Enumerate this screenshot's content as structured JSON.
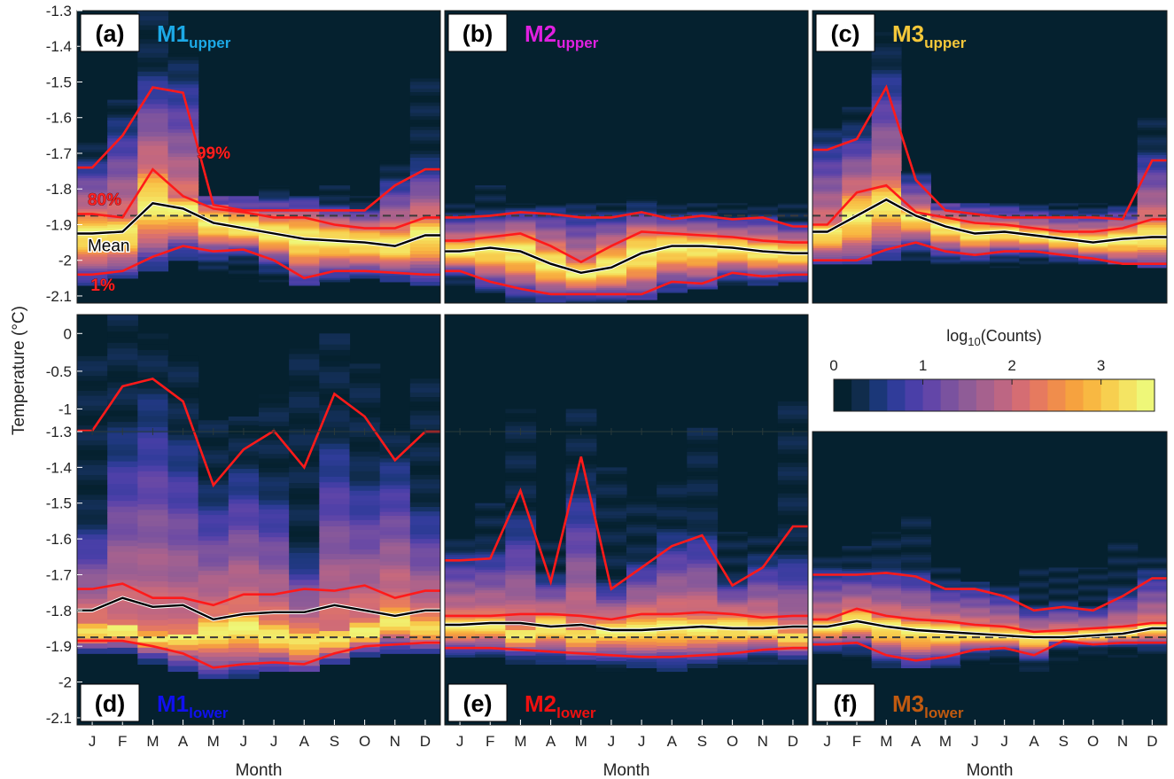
{
  "figure": {
    "ylabel": "Temperature (°C)",
    "xlabel": "Month",
    "months": [
      "J",
      "F",
      "M",
      "A",
      "M",
      "J",
      "J",
      "A",
      "S",
      "O",
      "N",
      "D"
    ],
    "reference_line_style": "dashed"
  },
  "colorbar": {
    "label_main": "log",
    "label_sub": "10",
    "label_tail": "(Counts)",
    "ticks": [
      0,
      1,
      2,
      3
    ],
    "range": [
      0,
      3.6
    ],
    "colors": [
      "#05212f",
      "#102c4c",
      "#1b3778",
      "#303c9a",
      "#4a3fa8",
      "#6346a8",
      "#7a529f",
      "#8f5c97",
      "#a6618e",
      "#bd6683",
      "#d56d73",
      "#e67a5f",
      "#f08d4c",
      "#f6a23f",
      "#f8b842",
      "#f7cf4f",
      "#f4e463",
      "#eef778"
    ]
  },
  "chart_data": [
    {
      "type": "heatmap",
      "panel_label": "(a)",
      "name_main": "M1",
      "name_sub": "upper",
      "name_color": "#1ca9e6",
      "ylim": [
        -2.12,
        -1.3
      ],
      "yticks": [
        -1.3,
        -1.4,
        -1.5,
        -1.6,
        -1.7,
        -1.8,
        -1.9,
        -2.0,
        -2.1
      ],
      "ytick_labels": [
        "-1.3",
        "-1.4",
        "-1.5",
        "-1.6",
        "-1.7",
        "-1.8",
        "-1.9",
        "-2",
        "-2.1"
      ],
      "reference_line": -1.875,
      "hist_top": [
        -1.67,
        -1.55,
        -1.25,
        -1.42,
        -1.82,
        -1.82,
        -1.79,
        -1.82,
        -1.79,
        -1.82,
        -1.72,
        -1.49
      ],
      "hist_bottom": [
        -2.07,
        -2.05,
        -2.03,
        -2.0,
        -2.03,
        -2.05,
        -2.06,
        -2.07,
        -2.06,
        -2.05,
        -2.06,
        -2.07
      ],
      "mean": [
        -1.925,
        -1.92,
        -1.84,
        -1.855,
        -1.895,
        -1.91,
        -1.925,
        -1.94,
        -1.945,
        -1.95,
        -1.96,
        -1.93
      ],
      "p80": [
        -1.87,
        -1.88,
        -1.745,
        -1.82,
        -1.855,
        -1.865,
        -1.88,
        -1.88,
        -1.9,
        -1.91,
        -1.91,
        -1.88
      ],
      "p99": [
        -1.74,
        -1.65,
        -1.515,
        -1.53,
        -1.845,
        -1.86,
        -1.86,
        -1.86,
        -1.86,
        -1.86,
        -1.79,
        -1.745
      ],
      "p1": [
        -2.04,
        -2.03,
        -1.99,
        -1.96,
        -1.975,
        -1.97,
        -2.0,
        -2.05,
        -2.03,
        -2.03,
        -2.035,
        -2.04
      ],
      "annotations": [
        {
          "text": "99%",
          "x": 3.95,
          "y": -1.715,
          "color": "#ff2020"
        },
        {
          "text": "80%",
          "x": 0.35,
          "y": -1.845,
          "color": "#ff2020"
        },
        {
          "text": "Mean",
          "x": 0.35,
          "y": -1.975,
          "color": "#000000"
        },
        {
          "text": "1%",
          "x": 0.45,
          "y": -2.085,
          "color": "#ff2020"
        }
      ]
    },
    {
      "type": "heatmap",
      "panel_label": "(b)",
      "name_main": "M2",
      "name_sub": "upper",
      "name_color": "#e020e0",
      "ylim": [
        -2.12,
        -1.3
      ],
      "yticks": [],
      "ytick_labels": [],
      "reference_line": -1.875,
      "hist_top": [
        -1.84,
        -1.79,
        -1.84,
        -1.84,
        -1.84,
        -1.84,
        -1.82,
        -1.84,
        -1.84,
        -1.84,
        -1.84,
        -1.84
      ],
      "hist_bottom": [
        -2.07,
        -2.09,
        -2.12,
        -2.12,
        -2.12,
        -2.12,
        -2.11,
        -2.09,
        -2.08,
        -2.07,
        -2.07,
        -2.06
      ],
      "mean": [
        -1.975,
        -1.965,
        -1.975,
        -2.01,
        -2.035,
        -2.02,
        -1.98,
        -1.96,
        -1.96,
        -1.965,
        -1.975,
        -1.98
      ],
      "p80": [
        -1.945,
        -1.935,
        -1.925,
        -1.96,
        -2.005,
        -1.96,
        -1.92,
        -1.925,
        -1.93,
        -1.935,
        -1.945,
        -1.95
      ],
      "p99": [
        -1.88,
        -1.875,
        -1.865,
        -1.87,
        -1.88,
        -1.88,
        -1.865,
        -1.885,
        -1.875,
        -1.885,
        -1.88,
        -1.905
      ],
      "p1": [
        -2.03,
        -2.06,
        -2.08,
        -2.095,
        -2.095,
        -2.095,
        -2.095,
        -2.06,
        -2.065,
        -2.035,
        -2.045,
        -2.04
      ],
      "annotations": []
    },
    {
      "type": "heatmap",
      "panel_label": "(c)",
      "name_main": "M3",
      "name_sub": "upper",
      "name_color": "#f5c83a",
      "ylim": [
        -2.12,
        -1.3
      ],
      "yticks": [],
      "ytick_labels": [],
      "reference_line": -1.875,
      "hist_top": [
        -1.63,
        -1.57,
        -1.36,
        -1.75,
        -1.84,
        -1.84,
        -1.84,
        -1.84,
        -1.84,
        -1.84,
        -1.84,
        -1.6
      ],
      "hist_bottom": [
        -2.01,
        -2.01,
        -2.0,
        -2.0,
        -2.01,
        -2.01,
        -2.02,
        -2.01,
        -2.01,
        -2.01,
        -2.01,
        -2.02
      ],
      "mean": [
        -1.92,
        -1.875,
        -1.83,
        -1.875,
        -1.905,
        -1.925,
        -1.92,
        -1.93,
        -1.94,
        -1.95,
        -1.94,
        -1.935
      ],
      "p80": [
        -1.9,
        -1.81,
        -1.79,
        -1.865,
        -1.88,
        -1.895,
        -1.9,
        -1.91,
        -1.92,
        -1.92,
        -1.91,
        -1.885
      ],
      "p99": [
        -1.69,
        -1.66,
        -1.515,
        -1.775,
        -1.86,
        -1.87,
        -1.88,
        -1.88,
        -1.88,
        -1.88,
        -1.885,
        -1.72
      ],
      "p1": [
        -2.0,
        -2.0,
        -1.97,
        -1.95,
        -1.975,
        -1.985,
        -1.975,
        -1.975,
        -1.985,
        -1.995,
        -2.01,
        -2.01
      ],
      "annotations": []
    },
    {
      "type": "heatmap",
      "panel_label": "(d)",
      "name_main": "M1",
      "name_sub": "lower",
      "name_color": "#1010ee",
      "ylim": [
        -2.12,
        0.25
      ],
      "yticks": [
        0,
        -0.5,
        -1,
        -1.3,
        -1.4,
        -1.5,
        -1.6,
        -1.7,
        -1.8,
        -1.9,
        -2.0,
        -2.1
      ],
      "ytick_labels": [
        "0",
        "-0.5",
        "-1",
        "-1.3",
        "-1.4",
        "-1.5",
        "-1.6",
        "-1.7",
        "-1.8",
        "-1.9",
        "-2",
        "-2.1"
      ],
      "axis_break": -1.3,
      "upper_scale_bottom": -1.3,
      "upper_scale_top": 0.25,
      "lower_scale_bottom": -2.12,
      "lower_scale_top": -1.3,
      "reference_line": -1.875,
      "hist_top": [
        -0.3,
        0.25,
        0.0,
        -0.3,
        -1.15,
        -1.1,
        -0.8,
        -0.2,
        0.0,
        -0.4,
        -1.2,
        -0.6
      ],
      "hist_bottom": [
        -1.92,
        -1.92,
        -1.95,
        -1.97,
        -1.99,
        -1.99,
        -1.97,
        -1.97,
        -1.95,
        -1.93,
        -1.92,
        -1.92
      ],
      "mean": [
        -1.8,
        -1.765,
        -1.79,
        -1.785,
        -1.825,
        -1.81,
        -1.805,
        -1.805,
        -1.785,
        -1.8,
        -1.815,
        -1.8
      ],
      "p80": [
        -1.74,
        -1.725,
        -1.765,
        -1.765,
        -1.785,
        -1.755,
        -1.755,
        -1.74,
        -1.745,
        -1.73,
        -1.765,
        -1.745
      ],
      "p99": [
        -1.29,
        -0.7,
        -0.6,
        -0.9,
        -1.45,
        -1.35,
        -1.29,
        -1.4,
        -0.8,
        -1.1,
        -1.38,
        -1.3
      ],
      "p1": [
        -1.885,
        -1.885,
        -1.9,
        -1.92,
        -1.96,
        -1.95,
        -1.945,
        -1.95,
        -1.92,
        -1.9,
        -1.895,
        -1.89
      ],
      "annotations": []
    },
    {
      "type": "heatmap",
      "panel_label": "(e)",
      "name_main": "M2",
      "name_sub": "lower",
      "name_color": "#ee1010",
      "ylim": [
        -2.12,
        0.25
      ],
      "yticks": [],
      "ytick_labels": [],
      "axis_break": -1.3,
      "upper_scale_bottom": -1.3,
      "upper_scale_top": 0.25,
      "lower_scale_bottom": -2.12,
      "lower_scale_top": -1.3,
      "reference_line": -1.875,
      "hist_top": [
        -1.6,
        -1.5,
        -1.0,
        -1.6,
        -1.0,
        -1.4,
        -1.48,
        -1.44,
        -1.25,
        -1.58,
        -1.58,
        -0.9
      ],
      "hist_bottom": [
        -1.93,
        -1.93,
        -1.95,
        -1.95,
        -1.95,
        -1.97,
        -1.96,
        -1.97,
        -1.96,
        -1.95,
        -1.95,
        -1.95
      ],
      "mean": [
        -1.84,
        -1.835,
        -1.835,
        -1.845,
        -1.84,
        -1.855,
        -1.855,
        -1.85,
        -1.845,
        -1.85,
        -1.85,
        -1.845
      ],
      "p80": [
        -1.815,
        -1.815,
        -1.81,
        -1.81,
        -1.815,
        -1.825,
        -1.81,
        -1.81,
        -1.805,
        -1.81,
        -1.82,
        -1.815
      ],
      "p99": [
        -1.66,
        -1.655,
        -1.465,
        -1.72,
        -1.37,
        -1.74,
        -1.68,
        -1.62,
        -1.59,
        -1.73,
        -1.68,
        -1.565
      ],
      "p1": [
        -1.905,
        -1.905,
        -1.91,
        -1.915,
        -1.92,
        -1.925,
        -1.93,
        -1.93,
        -1.925,
        -1.92,
        -1.91,
        -1.905
      ],
      "annotations": []
    },
    {
      "type": "heatmap",
      "panel_label": "(f)",
      "name_main": "M3",
      "name_sub": "lower",
      "name_color": "#c05a10",
      "ylim": [
        -2.12,
        -1.3
      ],
      "yticks": [],
      "ytick_labels": [],
      "reference_line": -1.875,
      "hist_top": [
        -1.65,
        -1.62,
        -1.58,
        -1.53,
        -1.68,
        -1.72,
        -1.72,
        -1.68,
        -1.68,
        -1.68,
        -1.6,
        -1.65
      ],
      "hist_bottom": [
        -1.92,
        -1.94,
        -1.96,
        -1.96,
        -1.96,
        -1.95,
        -1.95,
        -1.97,
        -1.95,
        -1.94,
        -1.93,
        -1.92
      ],
      "mean": [
        -1.845,
        -1.83,
        -1.845,
        -1.855,
        -1.86,
        -1.865,
        -1.87,
        -1.875,
        -1.875,
        -1.87,
        -1.865,
        -1.85
      ],
      "p80": [
        -1.825,
        -1.795,
        -1.815,
        -1.825,
        -1.83,
        -1.84,
        -1.845,
        -1.86,
        -1.855,
        -1.85,
        -1.845,
        -1.835
      ],
      "p99": [
        -1.7,
        -1.7,
        -1.695,
        -1.705,
        -1.74,
        -1.74,
        -1.76,
        -1.8,
        -1.79,
        -1.8,
        -1.76,
        -1.71
      ],
      "p1": [
        -1.895,
        -1.89,
        -1.925,
        -1.94,
        -1.93,
        -1.91,
        -1.905,
        -1.925,
        -1.885,
        -1.895,
        -1.89,
        -1.89
      ],
      "annotations": []
    }
  ]
}
